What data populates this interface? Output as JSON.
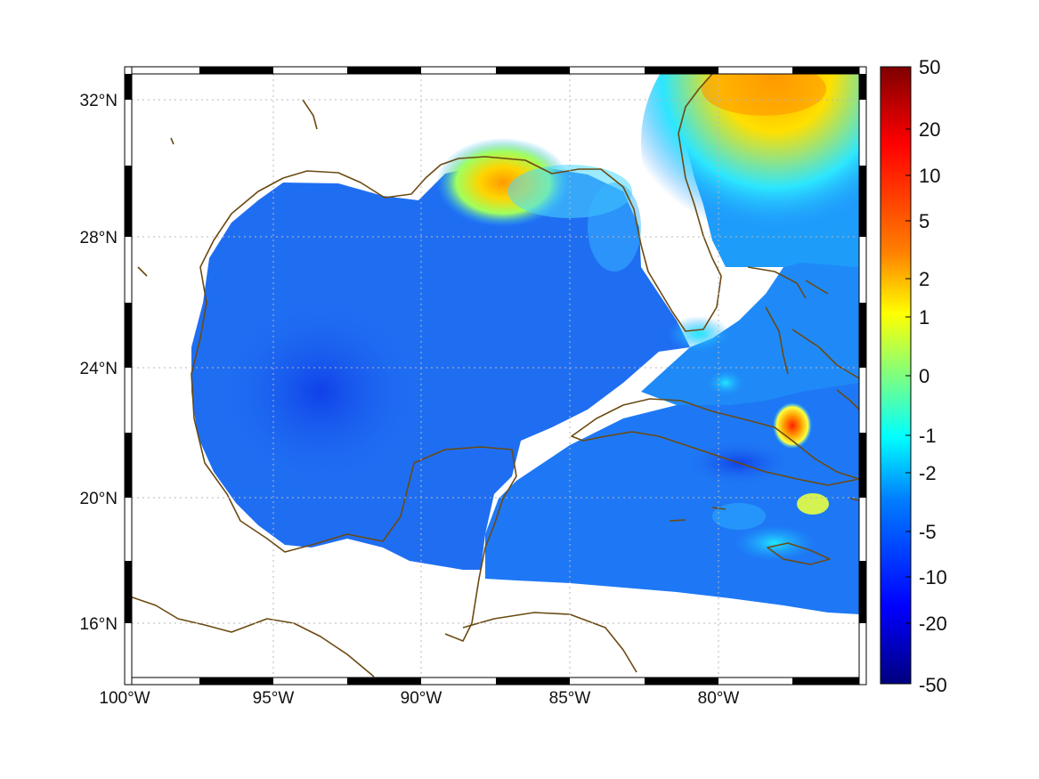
{
  "map": {
    "lon_labels": [
      "100°W",
      "95°W",
      "90°W",
      "85°W",
      "80°W"
    ],
    "lat_labels": [
      "32°N",
      "28°N",
      "24°N",
      "20°N",
      "16°N"
    ],
    "lon_range": [
      -100,
      -75
    ],
    "lat_range": [
      14.3,
      33
    ],
    "grid": "dotted",
    "frame": "black-white-checkered"
  },
  "colorbar": {
    "colormap": "jet",
    "tick_labels": [
      "50",
      "20",
      "10",
      "5",
      "2",
      "1",
      "0",
      "-1",
      "-2",
      "-5",
      "-10",
      "-20",
      "-50"
    ],
    "range": [
      -50,
      50
    ],
    "colors": [
      "#00007f",
      "#0000ff",
      "#007fff",
      "#00ffff",
      "#7fff7f",
      "#ffff00",
      "#ff7f00",
      "#ff0000",
      "#7f0000"
    ]
  },
  "colors": {
    "coastline": "#6b4a12",
    "ocean_base": "#1f6ef2",
    "land": "#ffffff"
  }
}
